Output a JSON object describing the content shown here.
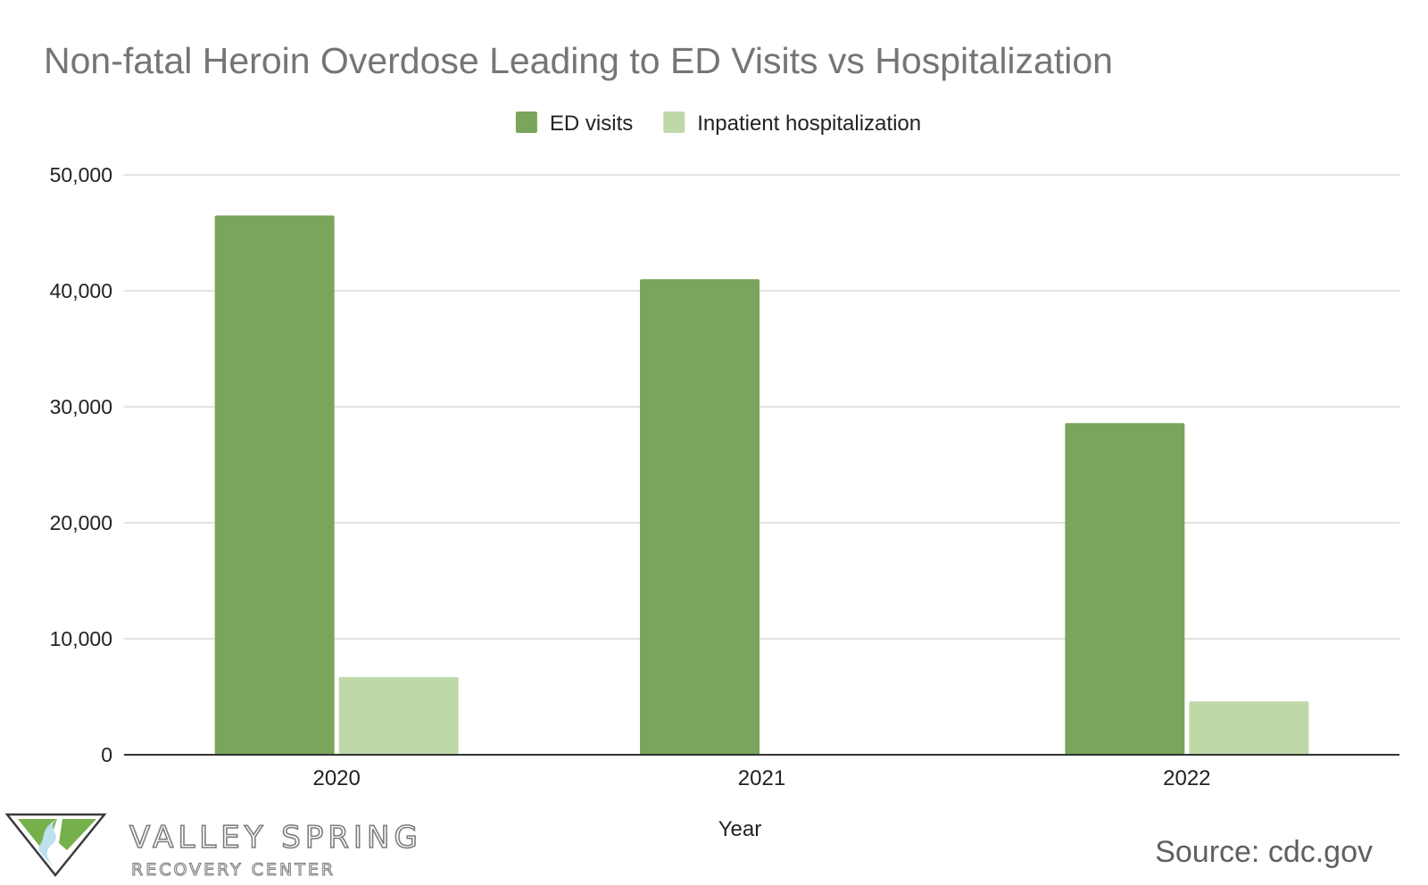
{
  "chart_data": {
    "type": "bar",
    "title": "Non-fatal Heroin Overdose Leading to ED Visits vs Hospitalization",
    "xlabel": "Year",
    "ylabel": "",
    "categories": [
      "2020",
      "2021",
      "2022"
    ],
    "series": [
      {
        "name": "ED visits",
        "color": "#7aa55c",
        "values": [
          46500,
          41000,
          28600
        ]
      },
      {
        "name": "Inpatient hospitalization",
        "color": "#bfd8a8",
        "values": [
          6700,
          0,
          4600
        ]
      }
    ],
    "ylim": [
      0,
      50000
    ],
    "yticks": [
      0,
      10000,
      20000,
      30000,
      40000,
      50000
    ],
    "ytick_labels": [
      "0",
      "10,000",
      "20,000",
      "30,000",
      "40,000",
      "50,000"
    ],
    "grid": true,
    "legend_position": "top-center"
  },
  "branding": {
    "name_line1": "VALLEY SPRING",
    "name_line2": "RECOVERY CENTER",
    "logo_colors": {
      "green": "#76b04a",
      "blue": "#bfe0ef",
      "outline": "#3b3b3b"
    }
  },
  "source_text": "Source: cdc.gov",
  "colors": {
    "grid": "#d9d9d9",
    "axis": "#333333",
    "title": "#757575",
    "text": "#222222"
  }
}
